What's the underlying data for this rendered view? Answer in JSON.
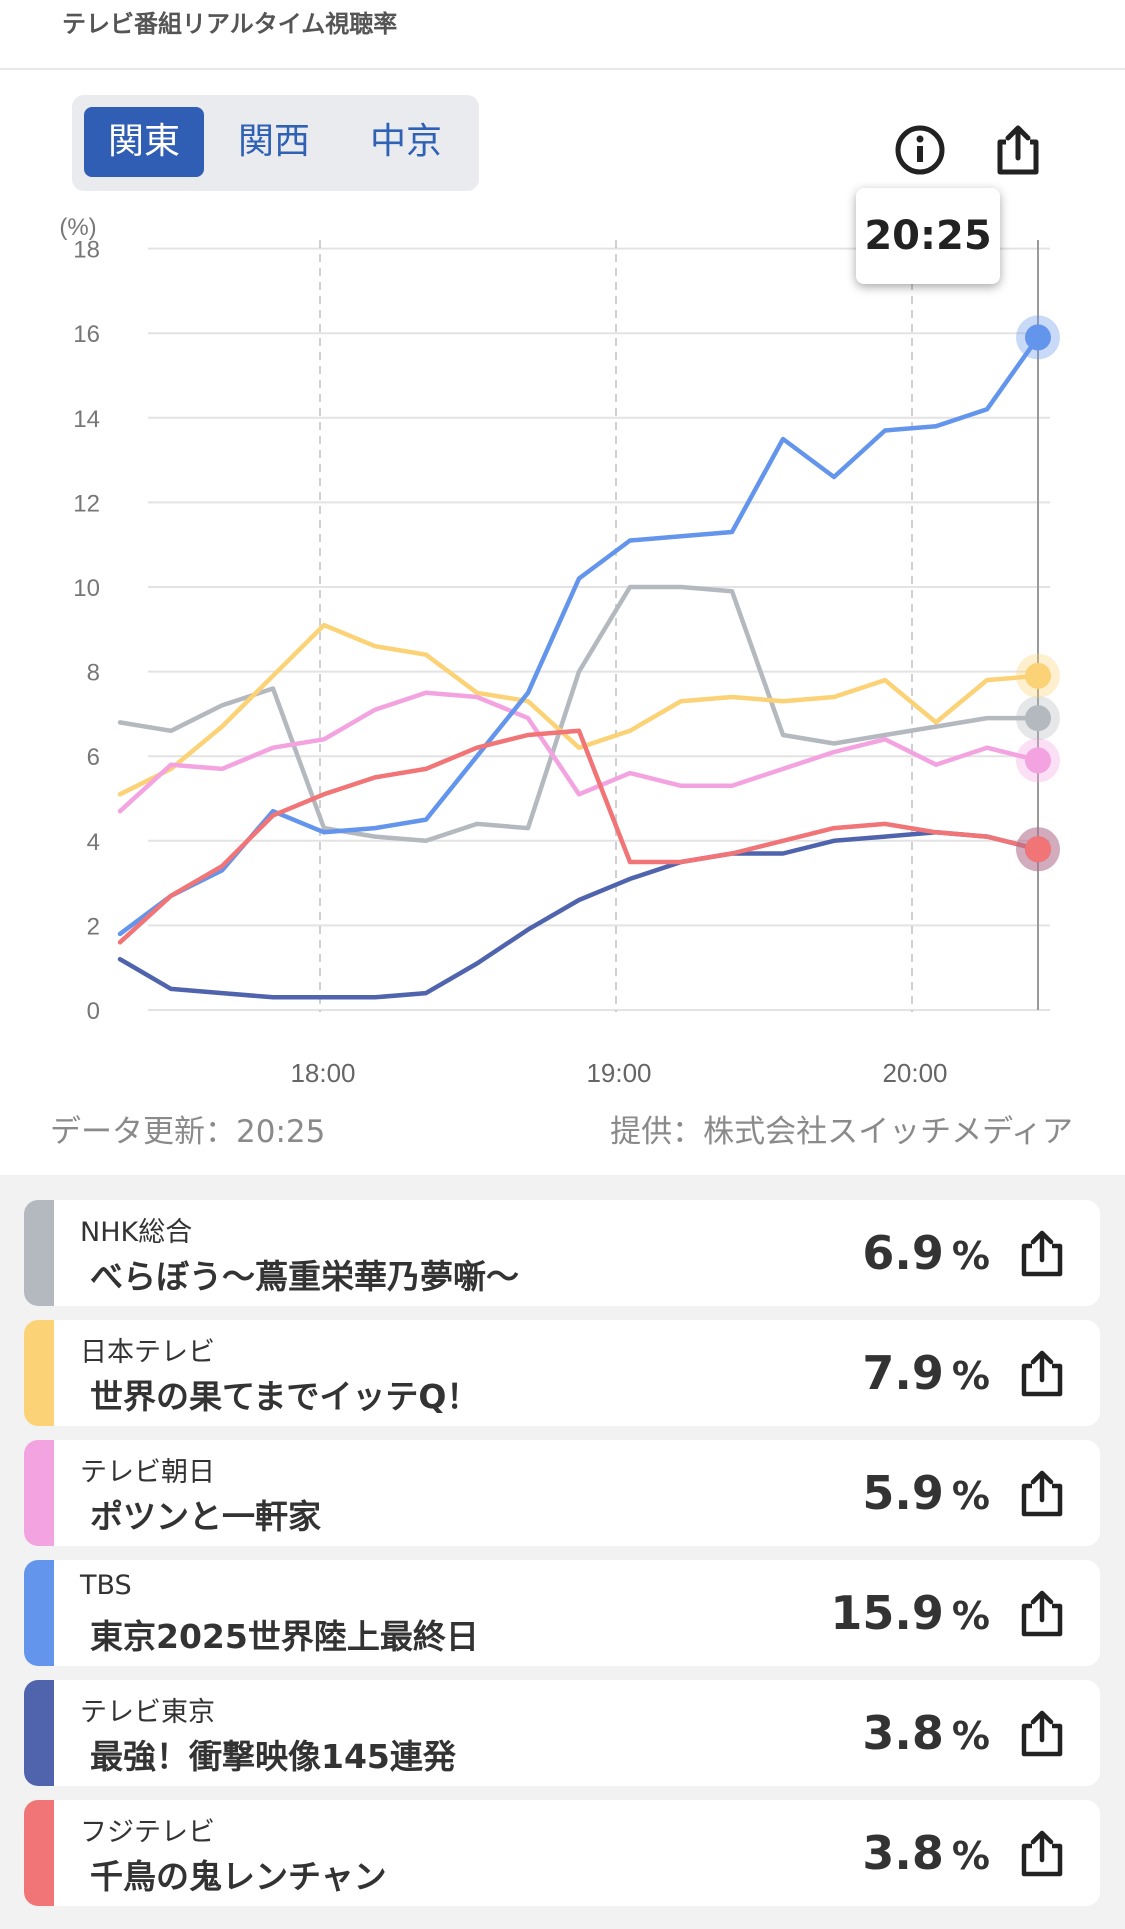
{
  "header": {
    "title": "テレビ番組リアルタイム視聴率"
  },
  "regions": [
    {
      "label": "関東",
      "active": true
    },
    {
      "label": "関西",
      "active": false
    },
    {
      "label": "中京",
      "active": false
    }
  ],
  "toolbar": {
    "info_icon": "info-icon",
    "share_icon": "share-icon"
  },
  "tooltip": {
    "time": "20:25"
  },
  "chart_data": {
    "type": "line",
    "yunit": "(%)",
    "ylim": [
      0,
      18
    ],
    "yticks": [
      "18",
      "16",
      "14",
      "12",
      "10",
      "8",
      "6",
      "4",
      "2",
      "0"
    ],
    "xticks": [
      "18:00",
      "19:00",
      "20:00"
    ],
    "x": [
      "17:25",
      "17:35",
      "17:45",
      "17:55",
      "18:05",
      "18:15",
      "18:25",
      "18:35",
      "18:45",
      "18:55",
      "19:05",
      "19:15",
      "19:25",
      "19:35",
      "19:45",
      "19:55",
      "20:05",
      "20:15",
      "20:25"
    ],
    "series": [
      {
        "name": "NHK総合",
        "color": "#b4b9c0",
        "values": [
          6.8,
          6.6,
          7.2,
          7.6,
          4.3,
          4.1,
          4.0,
          4.4,
          4.3,
          8.0,
          10.0,
          10.0,
          9.9,
          6.5,
          6.3,
          6.5,
          6.7,
          6.9,
          6.9
        ]
      },
      {
        "name": "日本テレビ",
        "color": "#fcd276",
        "values": [
          5.1,
          5.7,
          6.7,
          7.9,
          9.1,
          8.6,
          8.4,
          7.5,
          7.3,
          6.2,
          6.6,
          7.3,
          7.4,
          7.3,
          7.4,
          7.8,
          6.8,
          7.8,
          7.9
        ]
      },
      {
        "name": "テレビ朝日",
        "color": "#f4a3e1",
        "values": [
          4.7,
          5.8,
          5.7,
          6.2,
          6.4,
          7.1,
          7.5,
          7.4,
          6.9,
          5.1,
          5.6,
          5.3,
          5.3,
          5.7,
          6.1,
          6.4,
          5.8,
          6.2,
          5.9
        ]
      },
      {
        "name": "TBS",
        "color": "#6495ec",
        "values": [
          1.8,
          2.7,
          3.3,
          4.7,
          4.2,
          4.3,
          4.5,
          6.0,
          7.5,
          10.2,
          11.1,
          11.2,
          11.3,
          13.5,
          12.6,
          13.7,
          13.8,
          14.2,
          15.9
        ]
      },
      {
        "name": "テレビ東京",
        "color": "#5064ad",
        "values": [
          1.2,
          0.5,
          0.4,
          0.3,
          0.3,
          0.3,
          0.4,
          1.1,
          1.9,
          2.6,
          3.1,
          3.5,
          3.7,
          3.7,
          4.0,
          4.1,
          4.2,
          4.1,
          3.8
        ]
      },
      {
        "name": "フジテレビ",
        "color": "#f17476",
        "values": [
          1.6,
          2.7,
          3.4,
          4.6,
          5.1,
          5.5,
          5.7,
          6.2,
          6.5,
          6.6,
          3.5,
          3.5,
          3.7,
          4.0,
          4.3,
          4.4,
          4.2,
          4.1,
          3.8
        ]
      }
    ]
  },
  "footer_meta": {
    "updated": "データ更新：20:25",
    "provider": "提供：株式会社スイッチメディア"
  },
  "programs": [
    {
      "channel": "NHK総合",
      "title": "べらぼう〜蔦重栄華乃夢噺〜",
      "rating": "6.9",
      "unit": "%",
      "color": "#b4b9c0"
    },
    {
      "channel": "日本テレビ",
      "title": "世界の果てまでイッテQ！",
      "rating": "7.9",
      "unit": "%",
      "color": "#fcd276"
    },
    {
      "channel": "テレビ朝日",
      "title": "ポツンと一軒家",
      "rating": "5.9",
      "unit": "%",
      "color": "#f4a3e1"
    },
    {
      "channel": "TBS",
      "title": "東京2025世界陸上最終日",
      "rating": "15.9",
      "unit": "%",
      "color": "#6495ec"
    },
    {
      "channel": "テレビ東京",
      "title": "最強！衝撃映像145連発",
      "rating": "3.8",
      "unit": "%",
      "color": "#5064ad"
    },
    {
      "channel": "フジテレビ",
      "title": "千鳥の鬼レンチャン",
      "rating": "3.8",
      "unit": "%",
      "color": "#f17476"
    }
  ]
}
